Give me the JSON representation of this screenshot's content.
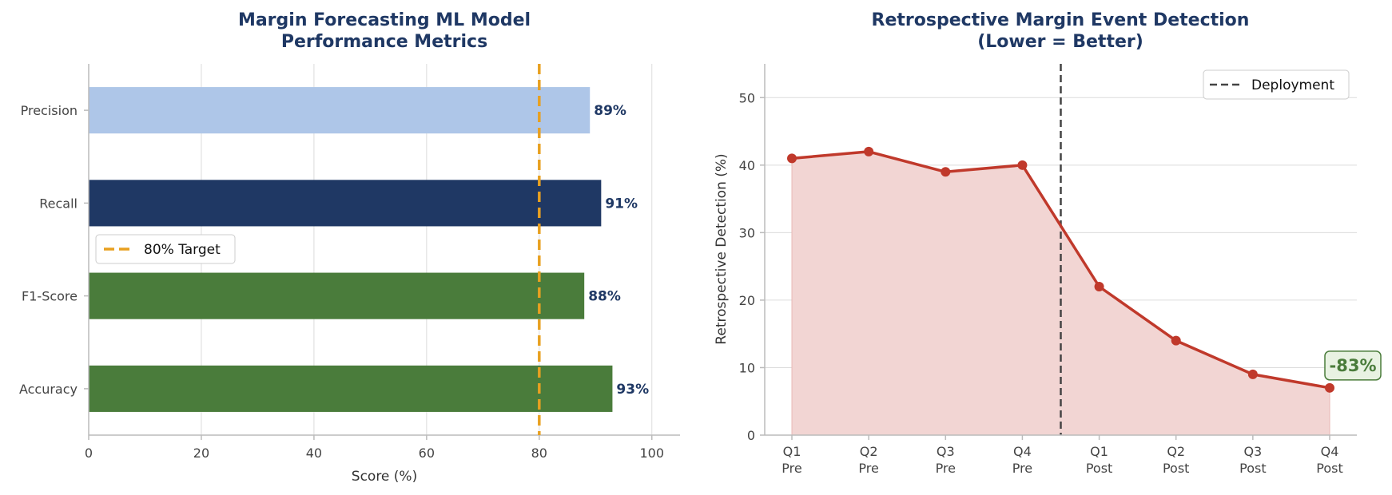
{
  "chart_data": [
    {
      "type": "bar",
      "orientation": "horizontal",
      "title_lines": [
        "Margin Forecasting ML Model",
        "Performance Metrics"
      ],
      "xlabel": "Score (%)",
      "ylabel": "",
      "xlim": [
        0,
        105
      ],
      "xticks": [
        0,
        20,
        40,
        60,
        80,
        100
      ],
      "categories": [
        "Precision",
        "Recall",
        "F1-Score",
        "Accuracy"
      ],
      "values": [
        89,
        91,
        88,
        93
      ],
      "value_labels": [
        "89%",
        "91%",
        "88%",
        "93%"
      ],
      "bar_colors": [
        "#aec6e8",
        "#1f3864",
        "#4a7c3b",
        "#4a7c3b"
      ],
      "target": {
        "value": 80,
        "label": "80% Target",
        "color": "#e8a020"
      },
      "legend_position": "center-left",
      "grid": "x"
    },
    {
      "type": "area",
      "title_lines": [
        "Retrospective Margin Event Detection",
        "(Lower = Better)"
      ],
      "xlabel": "",
      "ylabel": "Retrospective Detection (%)",
      "ylim": [
        0,
        55
      ],
      "yticks": [
        0,
        10,
        20,
        30,
        40,
        50
      ],
      "categories": [
        [
          "Q1",
          "Pre"
        ],
        [
          "Q2",
          "Pre"
        ],
        [
          "Q3",
          "Pre"
        ],
        [
          "Q4",
          "Pre"
        ],
        [
          "Q1",
          "Post"
        ],
        [
          "Q2",
          "Post"
        ],
        [
          "Q3",
          "Post"
        ],
        [
          "Q4",
          "Post"
        ]
      ],
      "values": [
        41,
        42,
        39,
        40,
        22,
        14,
        9,
        7
      ],
      "line_color": "#c0392b",
      "fill_color": "#f2d5d3",
      "deployment": {
        "label": "Deployment",
        "position_between": [
          3,
          4
        ],
        "color": "#444444"
      },
      "annotation": {
        "text": "-83%",
        "point_index": 7,
        "color": "#4a7c3b"
      },
      "legend_position": "top-right",
      "grid": "y"
    }
  ]
}
